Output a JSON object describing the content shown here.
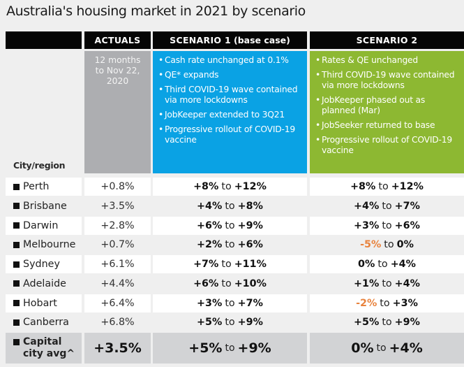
{
  "title": "Australia's housing market in 2021 by scenario",
  "columns": {
    "actuals": "ACTUALS",
    "scenario1": "SCENARIO 1",
    "scenario1_note": "(base case)",
    "scenario2": "SCENARIO 2"
  },
  "actuals_note": [
    "12 months",
    "to  Nov 22,",
    "2020"
  ],
  "scenario1_assumptions": [
    "Cash rate unchanged at 0.1%",
    "QE* expands",
    "Third COVID-19 wave contained via more lockdowns",
    "JobKeeper extended to 3Q21",
    "Progressive rollout of COVID-19 vaccine"
  ],
  "scenario2_assumptions": [
    "Rates & QE unchanged",
    "Third COVID-19 wave contained via more lockdowns",
    "JobKeeper phased out as planned (Mar)",
    "JobSeeker returned to base",
    "Progressive rollout of COVID-19 vaccine"
  ],
  "city_region_label": "City/region",
  "range_connector": "to",
  "colors": {
    "header_bg": "#050505",
    "actuals_bg": "#adaeb1",
    "scenario1_bg": "#0aa2e4",
    "scenario2_bg": "#8db832",
    "negative_text": "#e8833e",
    "total_row_bg": "#d2d3d5"
  },
  "rows": [
    {
      "city": "Perth",
      "actual": "+0.8%",
      "s1_low": "+8%",
      "s1_high": "+12%",
      "s2_low": "+8%",
      "s2_high": "+12%",
      "s2_low_negative": false
    },
    {
      "city": "Brisbane",
      "actual": "+3.5%",
      "s1_low": "+4%",
      "s1_high": "+8%",
      "s2_low": "+4%",
      "s2_high": "+7%",
      "s2_low_negative": false
    },
    {
      "city": "Darwin",
      "actual": "+2.8%",
      "s1_low": "+6%",
      "s1_high": "+9%",
      "s2_low": "+3%",
      "s2_high": "+6%",
      "s2_low_negative": false
    },
    {
      "city": "Melbourne",
      "actual": "+0.7%",
      "s1_low": "+2%",
      "s1_high": "+6%",
      "s2_low": "-5%",
      "s2_high": "0%",
      "s2_low_negative": true
    },
    {
      "city": "Sydney",
      "actual": "+6.1%",
      "s1_low": "+7%",
      "s1_high": "+11%",
      "s2_low": "0%",
      "s2_high": "+4%",
      "s2_low_negative": false
    },
    {
      "city": "Adelaide",
      "actual": "+4.4%",
      "s1_low": "+6%",
      "s1_high": "+10%",
      "s2_low": "+1%",
      "s2_high": "+4%",
      "s2_low_negative": false
    },
    {
      "city": "Hobart",
      "actual": "+6.4%",
      "s1_low": "+3%",
      "s1_high": "+7%",
      "s2_low": "-2%",
      "s2_high": "+3%",
      "s2_low_negative": true
    },
    {
      "city": "Canberra",
      "actual": "+6.8%",
      "s1_low": "+5%",
      "s1_high": "+9%",
      "s2_low": "+5%",
      "s2_high": "+9%",
      "s2_low_negative": false
    }
  ],
  "total": {
    "city_line1": "Capital",
    "city_line2": "city avg^",
    "actual": "+3.5%",
    "s1_low": "+5%",
    "s1_high": "+9%",
    "s2_low": "0%",
    "s2_high": "+4%"
  }
}
